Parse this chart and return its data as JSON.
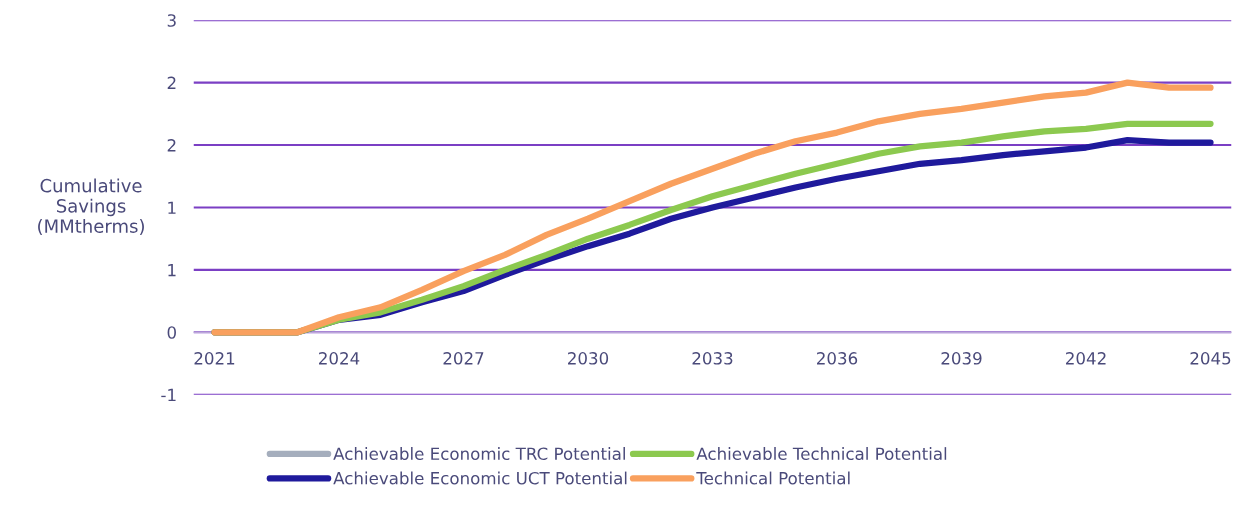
{
  "chart_data": {
    "type": "line",
    "ylabel": "Cumulative\nSavings\n(MMtherms)",
    "categories": [
      "2021",
      null,
      null,
      "2024",
      null,
      null,
      "2027",
      null,
      null,
      "2030",
      null,
      null,
      "2033",
      null,
      null,
      "2036",
      null,
      null,
      "2039",
      null,
      null,
      "2042",
      null,
      null,
      "2045"
    ],
    "ylim": [
      -0.5,
      2.5
    ],
    "yticks": [
      {
        "value": -0.5,
        "label": "-1"
      },
      {
        "value": 0,
        "label": "0"
      },
      {
        "value": 0.5,
        "label": "1"
      },
      {
        "value": 1,
        "label": "1"
      },
      {
        "value": 1.5,
        "label": "2"
      },
      {
        "value": 2,
        "label": "2"
      },
      {
        "value": 2.5,
        "label": "3"
      }
    ],
    "grid": "y",
    "legend": "bottom",
    "marker": "none",
    "line_style": "solid",
    "series": [
      {
        "name": "Achievable Economic TRC Potential",
        "color": "#a5aebd",
        "values": [
          null,
          null,
          null,
          null,
          null,
          null,
          null,
          null,
          null,
          null,
          null,
          null,
          null,
          null,
          null,
          null,
          null,
          null,
          null,
          null,
          null,
          null,
          null,
          null,
          null
        ]
      },
      {
        "name": "Achievable Economic UCT Potential",
        "color": "#1f1a9c",
        "values": [
          0,
          0,
          0,
          0.1,
          0.14,
          0.24,
          0.33,
          0.46,
          0.58,
          0.69,
          0.79,
          0.91,
          1.0,
          1.08,
          1.16,
          1.23,
          1.29,
          1.35,
          1.38,
          1.42,
          1.45,
          1.48,
          1.54,
          1.52,
          1.52
        ]
      },
      {
        "name": "Achievable Technical Potential",
        "color": "#8cc94f",
        "values": [
          0,
          0,
          0,
          0.1,
          0.16,
          0.26,
          0.37,
          0.5,
          0.62,
          0.75,
          0.86,
          0.98,
          1.09,
          1.18,
          1.27,
          1.35,
          1.43,
          1.49,
          1.52,
          1.57,
          1.61,
          1.63,
          1.67,
          1.67,
          1.67
        ]
      },
      {
        "name": "Technical Potential",
        "color": "#f9a05e",
        "values": [
          0,
          0,
          0,
          0.12,
          0.2,
          0.34,
          0.49,
          0.62,
          0.78,
          0.91,
          1.05,
          1.19,
          1.31,
          1.43,
          1.53,
          1.6,
          1.69,
          1.75,
          1.79,
          1.84,
          1.89,
          1.92,
          2.0,
          1.96,
          1.96
        ]
      }
    ]
  }
}
